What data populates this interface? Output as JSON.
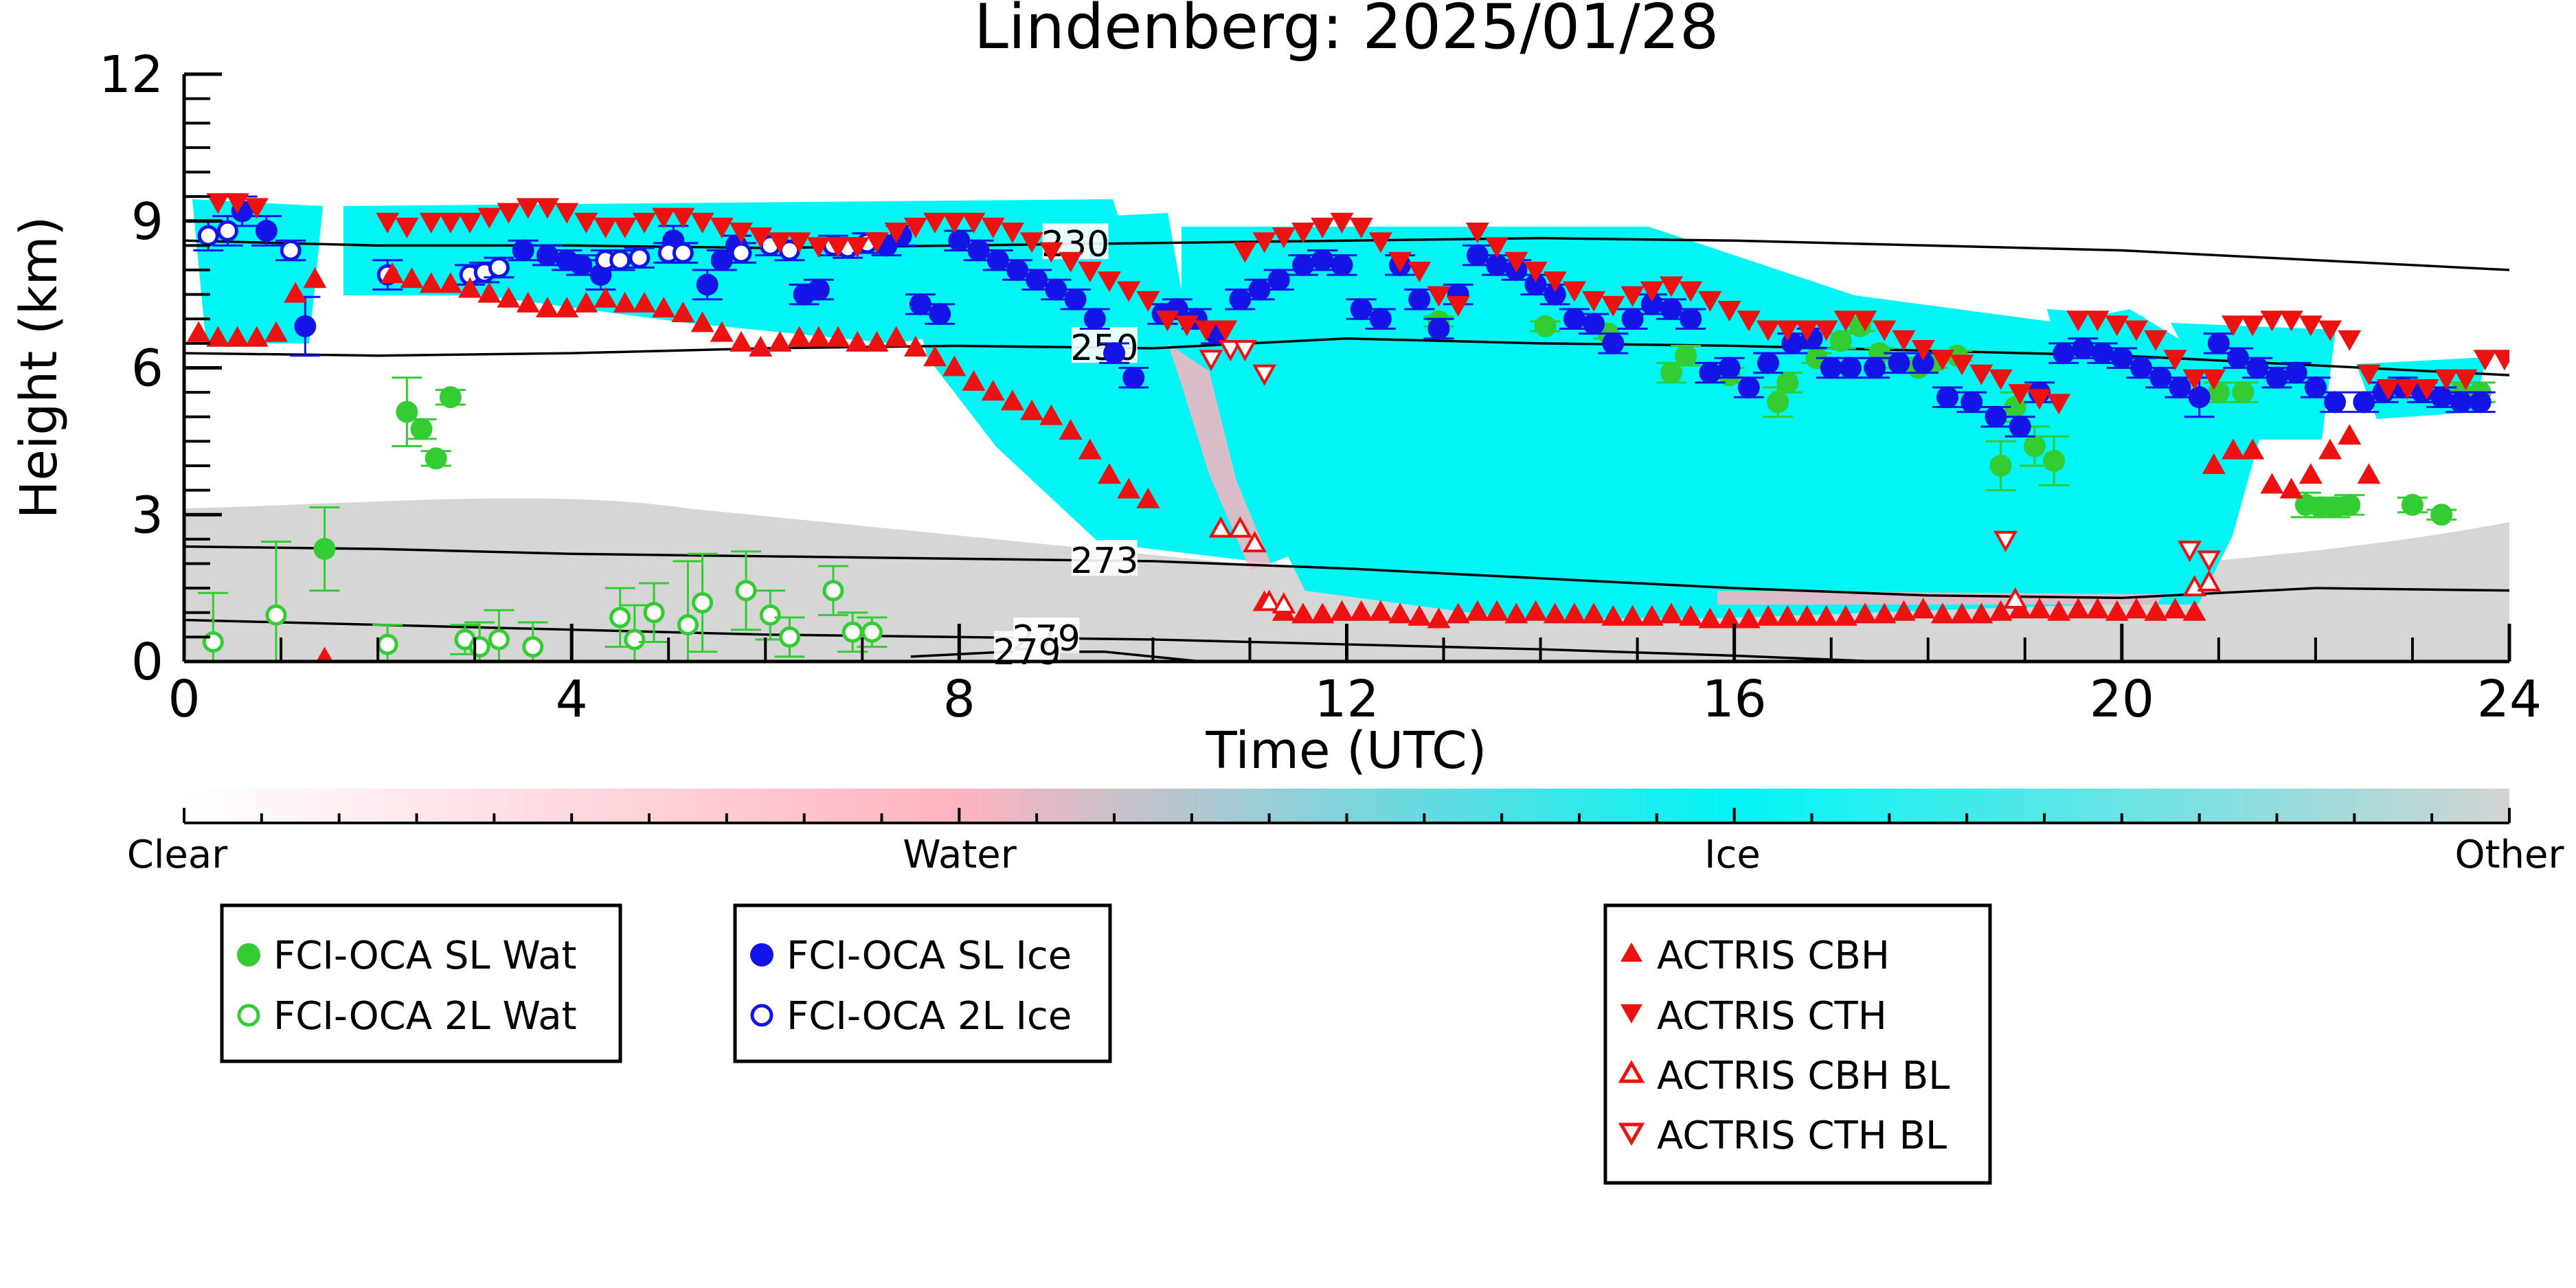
{
  "chart_data": {
    "type": "scatter",
    "title": "Lindenberg: 2025/01/28",
    "xlabel": "Time (UTC)",
    "ylabel": "Height (km)",
    "xlim": [
      0,
      24
    ],
    "ylim": [
      0,
      12
    ],
    "xticks": [
      "0",
      "4",
      "8",
      "12",
      "16",
      "20",
      "24"
    ],
    "yticks": [
      "0",
      "3",
      "6",
      "9",
      "12"
    ],
    "grid": false,
    "legend_placement": "bottom",
    "colors": {
      "ice": "#00f5f5",
      "water": "#ffb3c0",
      "other": "#d3d3d3",
      "fci_water": "#33cc33",
      "fci_ice": "#1414e6",
      "actris": "#ee1111"
    },
    "colorbar": {
      "labels": [
        "Clear",
        "Water",
        "Ice",
        "Other"
      ]
    },
    "isotherms": [
      {
        "label": "230",
        "label_x": 9.2,
        "x": [
          0,
          2,
          4,
          6,
          8,
          10,
          12,
          14,
          16,
          18,
          20,
          22,
          24
        ],
        "y": [
          8.6,
          8.5,
          8.5,
          8.45,
          8.5,
          8.55,
          8.6,
          8.65,
          8.6,
          8.5,
          8.4,
          8.2,
          8.0
        ]
      },
      {
        "label": "250",
        "label_x": 9.5,
        "x": [
          0,
          2,
          4,
          6,
          8,
          10,
          12,
          14,
          16,
          18,
          20,
          22,
          24
        ],
        "y": [
          6.3,
          6.25,
          6.3,
          6.4,
          6.45,
          6.4,
          6.6,
          6.5,
          6.45,
          6.35,
          6.25,
          6.05,
          5.85
        ]
      },
      {
        "label": "273",
        "label_x": 9.5,
        "x": [
          0,
          2,
          4,
          6,
          8,
          10,
          12,
          14,
          16,
          18,
          20,
          22,
          24
        ],
        "y": [
          2.35,
          2.3,
          2.2,
          2.15,
          2.1,
          2.05,
          1.9,
          1.7,
          1.5,
          1.35,
          1.3,
          1.5,
          1.45
        ]
      },
      {
        "label": "279",
        "label_x": 8.9,
        "x": [
          0,
          2,
          4,
          6,
          8,
          10,
          12,
          14,
          16,
          17.5
        ],
        "y": [
          0.85,
          0.75,
          0.65,
          0.55,
          0.5,
          0.45,
          0.35,
          0.25,
          0.12,
          0.0
        ]
      },
      {
        "label": "279",
        "label_x": 8.7,
        "x": [
          7.5,
          8.5,
          9.5,
          10.5
        ],
        "y": [
          0.1,
          0.2,
          0.2,
          0.0
        ]
      }
    ],
    "series": [
      {
        "name": "FCI-OCA SL Wat",
        "marker": "circle-filled",
        "color": "#33cc33",
        "x": [
          1.45,
          2.3,
          2.45,
          2.6,
          2.75,
          12.95,
          14.05,
          14.7,
          15.35,
          15.5,
          15.95,
          16.45,
          16.55,
          16.85,
          17.1,
          17.3,
          17.5,
          17.7,
          17.9,
          18.05,
          18.3,
          18.75,
          18.9,
          19.1,
          19.3,
          21.0,
          21.25,
          21.9,
          22.05,
          22.2,
          22.35,
          23.0,
          23.3,
          23.5,
          23.7
        ],
        "y": [
          2.3,
          5.1,
          4.75,
          4.15,
          5.4,
          6.95,
          6.85,
          6.7,
          5.9,
          6.25,
          5.85,
          5.3,
          5.7,
          6.2,
          6.55,
          6.85,
          6.3,
          6.1,
          6.0,
          6.1,
          6.25,
          4.0,
          5.2,
          4.4,
          4.1,
          5.5,
          5.5,
          3.2,
          3.15,
          3.15,
          3.2,
          3.2,
          3.0,
          5.5,
          5.5
        ],
        "err": [
          0.85,
          0.7,
          0.2,
          0.15,
          0.15,
          0.1,
          0.1,
          0.1,
          0.2,
          0.2,
          0.15,
          0.3,
          0.2,
          0.1,
          0.15,
          0.1,
          0.1,
          0.1,
          0.1,
          0.1,
          0.1,
          0.5,
          0.3,
          0.4,
          0.5,
          0.2,
          0.2,
          0.25,
          0.2,
          0.2,
          0.2,
          0.15,
          0.1,
          0.2,
          0.2
        ]
      },
      {
        "name": "FCI-OCA 2L Wat",
        "marker": "circle-open",
        "color": "#33cc33",
        "x": [
          0.3,
          0.95,
          2.1,
          2.9,
          3.05,
          3.25,
          3.6,
          4.5,
          4.65,
          4.85,
          5.2,
          5.35,
          5.8,
          6.05,
          6.25,
          6.7,
          6.9,
          7.1
        ],
        "y": [
          0.4,
          0.95,
          0.35,
          0.45,
          0.3,
          0.45,
          0.3,
          0.9,
          0.45,
          1.0,
          0.75,
          1.2,
          1.45,
          0.95,
          0.5,
          1.45,
          0.6,
          0.6
        ],
        "err": [
          1.0,
          1.5,
          0.4,
          0.3,
          0.5,
          0.6,
          0.5,
          0.6,
          0.7,
          0.6,
          1.3,
          1.0,
          0.8,
          0.5,
          0.4,
          0.5,
          0.4,
          0.3
        ]
      },
      {
        "name": "FCI-OCA SL Ice",
        "marker": "circle-filled",
        "color": "#1414e6",
        "x": [
          0.6,
          0.85,
          1.25,
          3.5,
          3.75,
          3.95,
          4.1,
          4.3,
          5.05,
          5.4,
          5.55,
          5.7,
          6.4,
          6.55,
          7.25,
          7.4,
          7.6,
          7.8,
          8.0,
          8.2,
          8.4,
          8.6,
          8.8,
          9.0,
          9.2,
          9.4,
          9.6,
          9.8,
          10.1,
          10.25,
          10.45,
          10.65,
          10.9,
          11.1,
          11.3,
          11.55,
          11.75,
          11.95,
          12.15,
          12.35,
          12.55,
          12.75,
          12.95,
          13.15,
          13.35,
          13.55,
          13.75,
          13.95,
          14.15,
          14.35,
          14.55,
          14.75,
          14.95,
          15.15,
          15.35,
          15.55,
          15.75,
          15.95,
          16.15,
          16.35,
          16.6,
          16.8,
          17.0,
          17.2,
          17.45,
          17.7,
          17.95,
          18.2,
          18.45,
          18.7,
          18.95,
          19.15,
          19.4,
          19.6,
          19.8,
          20.0,
          20.2,
          20.4,
          20.6,
          20.8,
          21.0,
          21.2,
          21.4,
          21.6,
          21.8,
          22.0,
          22.2,
          22.5,
          22.7,
          22.9,
          23.1,
          23.3,
          23.5,
          23.7
        ],
        "y": [
          9.2,
          8.8,
          6.85,
          8.4,
          8.3,
          8.2,
          8.1,
          7.9,
          8.6,
          7.7,
          8.2,
          8.5,
          7.5,
          7.6,
          8.5,
          8.7,
          7.3,
          7.1,
          8.6,
          8.4,
          8.2,
          8.0,
          7.8,
          7.6,
          7.4,
          7.0,
          6.3,
          5.8,
          7.1,
          7.2,
          7.0,
          6.7,
          7.4,
          7.6,
          7.8,
          8.1,
          8.2,
          8.1,
          7.2,
          7.0,
          8.1,
          7.4,
          6.8,
          7.5,
          8.3,
          8.1,
          8.0,
          7.7,
          7.5,
          7.0,
          6.9,
          6.5,
          7.0,
          7.3,
          7.2,
          7.0,
          5.9,
          6.0,
          5.6,
          6.1,
          6.5,
          6.6,
          6.0,
          6.0,
          6.0,
          6.1,
          6.1,
          5.4,
          5.3,
          5.0,
          4.8,
          5.5,
          6.3,
          6.4,
          6.3,
          6.2,
          6.0,
          5.8,
          5.6,
          5.4,
          6.5,
          6.2,
          6.0,
          5.8,
          5.9,
          5.6,
          5.3,
          5.3,
          5.5,
          5.6,
          5.5,
          5.4,
          5.3,
          5.3
        ],
        "err": [
          0.3,
          0.3,
          0.6,
          0.2,
          0.2,
          0.2,
          0.2,
          0.3,
          0.3,
          0.3,
          0.2,
          0.2,
          0.2,
          0.2,
          0.2,
          0.2,
          0.2,
          0.2,
          0.2,
          0.2,
          0.2,
          0.2,
          0.2,
          0.2,
          0.2,
          0.2,
          0.2,
          0.2,
          0.2,
          0.2,
          0.2,
          0.2,
          0.2,
          0.2,
          0.2,
          0.2,
          0.2,
          0.2,
          0.2,
          0.2,
          0.2,
          0.2,
          0.2,
          0.2,
          0.2,
          0.2,
          0.2,
          0.2,
          0.2,
          0.2,
          0.2,
          0.2,
          0.2,
          0.2,
          0.2,
          0.2,
          0.2,
          0.2,
          0.2,
          0.2,
          0.2,
          0.2,
          0.2,
          0.2,
          0.2,
          0.2,
          0.2,
          0.2,
          0.2,
          0.2,
          0.2,
          0.2,
          0.2,
          0.2,
          0.2,
          0.2,
          0.2,
          0.2,
          0.2,
          0.4,
          0.2,
          0.2,
          0.2,
          0.2,
          0.2,
          0.2,
          0.2,
          0.2,
          0.2,
          0.2,
          0.2,
          0.2,
          0.2,
          0.2
        ]
      },
      {
        "name": "FCI-OCA 2L Ice",
        "marker": "circle-open",
        "color": "#1414e6",
        "x": [
          0.25,
          0.45,
          1.1,
          2.1,
          2.95,
          3.1,
          3.25,
          4.35,
          4.5,
          4.7,
          5.0,
          5.15,
          5.75,
          6.05,
          6.25,
          6.7,
          6.85,
          7.05
        ],
        "y": [
          8.7,
          8.8,
          8.4,
          7.9,
          7.9,
          7.95,
          8.05,
          8.2,
          8.2,
          8.25,
          8.35,
          8.35,
          8.35,
          8.5,
          8.4,
          8.5,
          8.45,
          8.55
        ],
        "err": [
          0.3,
          0.3,
          0.2,
          0.3,
          0.2,
          0.2,
          0.2,
          0.2,
          0.2,
          0.2,
          0.2,
          0.2,
          0.2,
          0.2,
          0.2,
          0.2,
          0.2,
          0.2
        ]
      },
      {
        "name": "ACTRIS CBH",
        "marker": "triangle-up-filled",
        "color": "#ee1111",
        "x": [
          0.15,
          0.35,
          0.55,
          0.75,
          0.95,
          1.15,
          1.35,
          1.45,
          2.15,
          2.35,
          2.55,
          2.75,
          2.95,
          3.15,
          3.35,
          3.55,
          3.75,
          3.95,
          4.15,
          4.35,
          4.55,
          4.75,
          4.95,
          5.15,
          5.35,
          5.55,
          5.75,
          5.95,
          6.15,
          6.35,
          6.55,
          6.75,
          6.95,
          7.15,
          7.35,
          7.55,
          7.75,
          7.95,
          8.15,
          8.35,
          8.55,
          8.75,
          8.95,
          9.15,
          9.35,
          9.55,
          9.75,
          9.95,
          11.15,
          11.35,
          11.55,
          11.75,
          11.95,
          12.15,
          12.35,
          12.55,
          12.75,
          12.95,
          13.15,
          13.35,
          13.55,
          13.75,
          13.95,
          14.15,
          14.35,
          14.55,
          14.75,
          14.95,
          15.15,
          15.35,
          15.55,
          15.75,
          15.95,
          16.15,
          16.35,
          16.55,
          16.75,
          16.95,
          17.15,
          17.35,
          17.55,
          17.75,
          17.95,
          18.15,
          18.35,
          18.55,
          18.75,
          18.95,
          19.15,
          19.35,
          19.55,
          19.75,
          19.95,
          20.15,
          20.35,
          20.55,
          20.75,
          20.95,
          21.15,
          21.35,
          21.55,
          21.75,
          21.95,
          22.15,
          22.35,
          22.55
        ],
        "y": [
          6.7,
          6.6,
          6.6,
          6.6,
          6.7,
          7.5,
          7.8,
          0.05,
          7.9,
          7.8,
          7.7,
          7.7,
          7.6,
          7.5,
          7.4,
          7.3,
          7.2,
          7.2,
          7.3,
          7.4,
          7.3,
          7.3,
          7.2,
          7.1,
          6.9,
          6.7,
          6.5,
          6.4,
          6.5,
          6.6,
          6.6,
          6.6,
          6.5,
          6.5,
          6.6,
          6.4,
          6.2,
          6.0,
          5.7,
          5.5,
          5.3,
          5.1,
          5.0,
          4.7,
          4.3,
          3.8,
          3.5,
          3.3,
          1.2,
          1.0,
          0.95,
          0.95,
          1.0,
          1.0,
          1.0,
          0.95,
          0.9,
          0.85,
          0.95,
          1.0,
          1.0,
          0.95,
          1.0,
          0.95,
          0.95,
          0.95,
          0.9,
          0.9,
          0.9,
          0.95,
          0.9,
          0.85,
          0.85,
          0.85,
          0.9,
          0.9,
          0.9,
          0.9,
          0.9,
          0.95,
          0.95,
          1.0,
          1.05,
          0.95,
          0.95,
          0.95,
          1.0,
          1.05,
          1.05,
          1.0,
          1.05,
          1.05,
          1.0,
          1.05,
          1.0,
          1.05,
          1.0,
          4.0,
          4.3,
          4.3,
          3.6,
          3.5,
          3.8,
          4.3,
          4.6,
          3.8
        ],
        "err": []
      },
      {
        "name": "ACTRIS CTH",
        "marker": "triangle-down-filled",
        "color": "#ee1111",
        "x": [
          0.35,
          0.55,
          0.75,
          2.1,
          2.3,
          2.55,
          2.75,
          2.95,
          3.15,
          3.35,
          3.55,
          3.75,
          3.95,
          4.15,
          4.35,
          4.55,
          4.75,
          4.95,
          5.15,
          5.35,
          5.55,
          5.75,
          5.95,
          6.15,
          6.35,
          6.55,
          6.75,
          6.95,
          7.15,
          7.35,
          7.55,
          7.75,
          7.95,
          8.15,
          8.35,
          8.55,
          8.75,
          8.95,
          9.15,
          9.35,
          9.55,
          9.75,
          9.95,
          10.15,
          10.35,
          10.55,
          10.75,
          10.95,
          11.15,
          11.35,
          11.55,
          11.75,
          11.95,
          12.15,
          12.35,
          12.55,
          12.75,
          12.95,
          13.15,
          13.35,
          13.55,
          13.75,
          13.95,
          14.15,
          14.35,
          14.55,
          14.75,
          14.95,
          15.15,
          15.35,
          15.55,
          15.75,
          15.95,
          16.15,
          16.35,
          16.55,
          16.75,
          16.95,
          17.15,
          17.35,
          17.55,
          17.75,
          17.95,
          18.15,
          18.35,
          18.55,
          18.75,
          18.95,
          19.15,
          19.35,
          19.55,
          19.75,
          19.95,
          20.15,
          20.35,
          20.55,
          20.75,
          20.95,
          21.15,
          21.35,
          21.55,
          21.75,
          21.95,
          22.15,
          22.35,
          22.55,
          22.75,
          22.95,
          23.15,
          23.35,
          23.55,
          23.75,
          23.95
        ],
        "y": [
          9.4,
          9.4,
          9.3,
          9.0,
          8.9,
          9.0,
          9.0,
          9.0,
          9.1,
          9.2,
          9.3,
          9.3,
          9.2,
          9.0,
          8.9,
          8.9,
          9.0,
          9.1,
          9.1,
          9.0,
          8.9,
          8.8,
          8.7,
          8.6,
          8.6,
          8.5,
          8.5,
          8.5,
          8.6,
          8.8,
          8.9,
          9.0,
          9.0,
          9.0,
          8.9,
          8.8,
          8.6,
          8.4,
          8.2,
          8.0,
          7.8,
          7.6,
          7.4,
          7.0,
          6.9,
          6.8,
          6.8,
          8.4,
          8.6,
          8.7,
          8.8,
          8.9,
          9.0,
          8.9,
          8.6,
          8.2,
          8.0,
          7.5,
          7.3,
          8.8,
          8.5,
          8.2,
          8.0,
          7.8,
          7.6,
          7.4,
          7.3,
          7.5,
          7.6,
          7.7,
          7.6,
          7.4,
          7.2,
          7.0,
          6.8,
          6.8,
          6.8,
          6.8,
          7.0,
          7.0,
          6.8,
          6.6,
          6.4,
          6.2,
          6.1,
          5.9,
          5.8,
          5.5,
          5.4,
          5.3,
          7.0,
          7.0,
          6.9,
          6.8,
          6.6,
          6.2,
          5.8,
          5.8,
          6.9,
          6.9,
          7.0,
          7.0,
          6.9,
          6.8,
          6.6,
          5.9,
          5.6,
          5.6,
          5.6,
          5.8,
          5.8,
          6.2,
          6.2
        ],
        "err": []
      },
      {
        "name": "ACTRIS CBH BL",
        "marker": "triangle-up-open",
        "color": "#ee1111",
        "x": [
          10.7,
          10.9,
          11.05,
          11.2,
          11.35,
          18.9,
          20.75,
          20.9
        ],
        "y": [
          2.7,
          2.7,
          2.4,
          1.2,
          1.15,
          1.25,
          1.5,
          1.6
        ],
        "err": []
      },
      {
        "name": "ACTRIS CTH BL",
        "marker": "triangle-down-open",
        "color": "#ee1111",
        "x": [
          10.6,
          10.8,
          10.95,
          11.15,
          18.8,
          20.7,
          20.9
        ],
        "y": [
          6.2,
          6.4,
          6.4,
          5.9,
          2.5,
          2.3,
          2.1
        ],
        "err": []
      }
    ],
    "legend_boxes": [
      [
        "FCI-OCA SL Wat",
        "FCI-OCA 2L Wat"
      ],
      [
        "FCI-OCA SL Ice",
        "FCI-OCA 2L Ice"
      ],
      [
        "ACTRIS CBH",
        "ACTRIS CTH",
        "ACTRIS CBH BL",
        "ACTRIS CTH BL"
      ]
    ]
  }
}
